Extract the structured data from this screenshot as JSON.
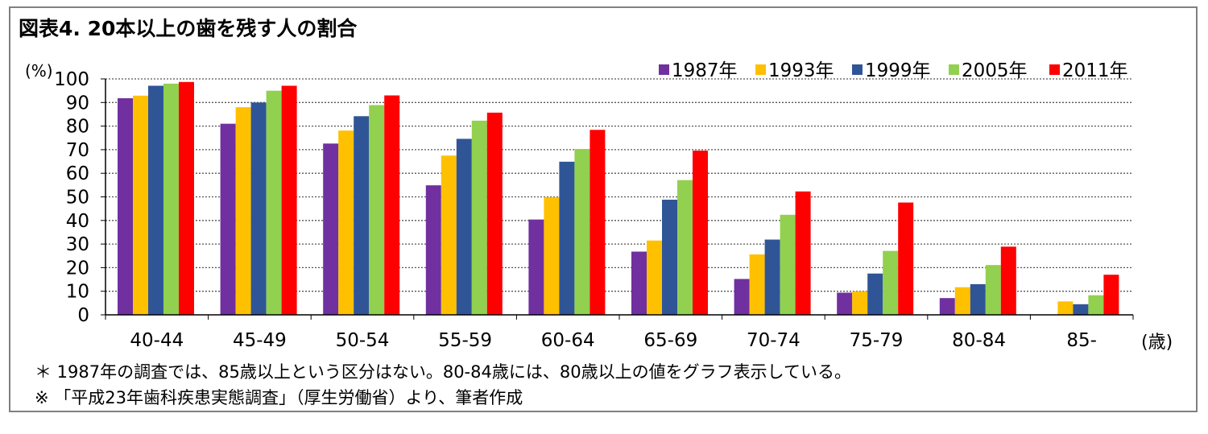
{
  "figure": {
    "title": "図表4. 20本以上の歯を残す人の割合",
    "notes": [
      "＊ 1987年の調査では、85歳以上という区分はない。80-84歳には、80歳以上の値をグラフ表示している。",
      "※ 「平成23年歯科疾患実態調査」（厚生労働省）より、筆者作成"
    ]
  },
  "chart_data": {
    "type": "bar",
    "title": "図表4. 20本以上の歯を残す人の割合",
    "ylabel": "(%)",
    "xlabel": "(歳)",
    "ylim": [
      0,
      100
    ],
    "yticks": [
      0,
      10,
      20,
      30,
      40,
      50,
      60,
      70,
      80,
      90,
      100
    ],
    "grid": true,
    "legend_position": "top-right",
    "categories": [
      "40-44",
      "45-49",
      "50-54",
      "55-59",
      "60-64",
      "65-69",
      "70-74",
      "75-79",
      "80-84",
      "85-"
    ],
    "series": [
      {
        "name": "1987年",
        "color": "#7030a0",
        "values": [
          91.8,
          81.0,
          72.6,
          54.9,
          40.4,
          26.8,
          15.2,
          9.4,
          7.1,
          null
        ]
      },
      {
        "name": "1993年",
        "color": "#ffc000",
        "values": [
          92.9,
          88.0,
          78.1,
          67.5,
          49.9,
          31.5,
          25.6,
          10.0,
          11.7,
          5.7
        ]
      },
      {
        "name": "1999年",
        "color": "#2f5597",
        "values": [
          97.1,
          90.0,
          84.2,
          74.6,
          64.9,
          48.8,
          31.9,
          17.5,
          13.0,
          4.5
        ]
      },
      {
        "name": "2005年",
        "color": "#92d050",
        "values": [
          98.0,
          95.0,
          88.9,
          82.3,
          70.3,
          57.1,
          42.4,
          27.1,
          21.1,
          8.3
        ]
      },
      {
        "name": "2011年",
        "color": "#ff0000",
        "values": [
          98.7,
          97.1,
          93.0,
          85.7,
          78.4,
          69.6,
          52.3,
          47.6,
          28.9,
          17.0
        ]
      }
    ]
  }
}
